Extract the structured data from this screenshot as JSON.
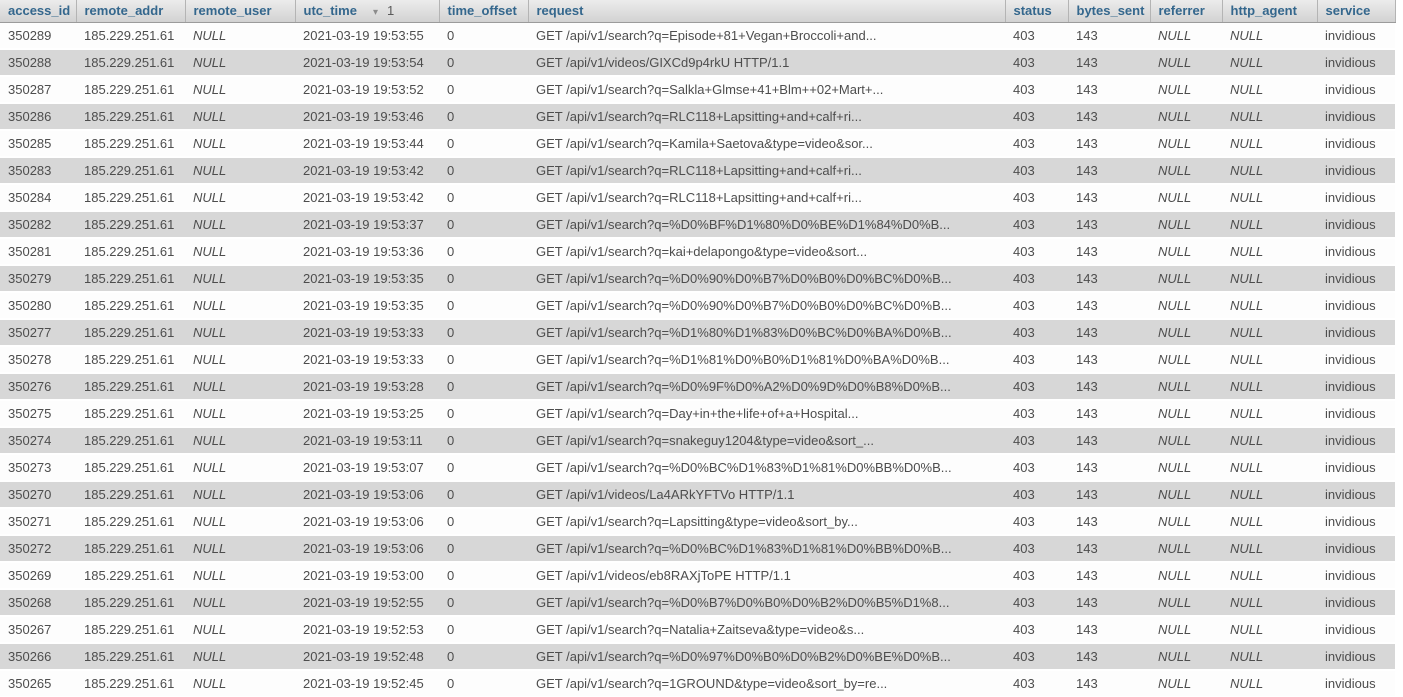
{
  "grid": {
    "columns": [
      {
        "label": "access_id"
      },
      {
        "label": "remote_addr"
      },
      {
        "label": "remote_user"
      },
      {
        "label": "utc_time",
        "sort_icon": "▾",
        "sort_priority": "1"
      },
      {
        "label": "time_offset"
      },
      {
        "label": "request"
      },
      {
        "label": "status"
      },
      {
        "label": "bytes_sent"
      },
      {
        "label": "referrer"
      },
      {
        "label": "http_agent"
      },
      {
        "label": "service"
      }
    ],
    "sort": {
      "column": "utc_time",
      "direction": "descending",
      "priority": "1"
    },
    "null_display": "NULL",
    "colors": {
      "header_text": "#34678d",
      "header_bg_top": "#ececec",
      "header_bg_bottom": "#d2d2d2",
      "header_border_bottom": "#9b9b9b",
      "row_even_bg": "#d7d7d7",
      "row_odd_bg": "#fdfdfd",
      "cell_text": "#4d4d4d"
    },
    "rows": [
      [
        "350289",
        "185.229.251.61",
        "NULL",
        "2021-03-19 19:53:55",
        "0",
        "GET /api/v1/search?q=Episode+81+Vegan+Broccoli+and...",
        "403",
        "143",
        "NULL",
        "NULL",
        "invidious"
      ],
      [
        "350288",
        "185.229.251.61",
        "NULL",
        "2021-03-19 19:53:54",
        "0",
        "GET /api/v1/videos/GIXCd9p4rkU HTTP/1.1",
        "403",
        "143",
        "NULL",
        "NULL",
        "invidious"
      ],
      [
        "350287",
        "185.229.251.61",
        "NULL",
        "2021-03-19 19:53:52",
        "0",
        "GET /api/v1/search?q=Salkla+Glmse+41+Blm++02+Mart+...",
        "403",
        "143",
        "NULL",
        "NULL",
        "invidious"
      ],
      [
        "350286",
        "185.229.251.61",
        "NULL",
        "2021-03-19 19:53:46",
        "0",
        "GET /api/v1/search?q=RLC118+Lapsitting+and+calf+ri...",
        "403",
        "143",
        "NULL",
        "NULL",
        "invidious"
      ],
      [
        "350285",
        "185.229.251.61",
        "NULL",
        "2021-03-19 19:53:44",
        "0",
        "GET /api/v1/search?q=Kamila+Saetova&type=video&sor...",
        "403",
        "143",
        "NULL",
        "NULL",
        "invidious"
      ],
      [
        "350283",
        "185.229.251.61",
        "NULL",
        "2021-03-19 19:53:42",
        "0",
        "GET /api/v1/search?q=RLC118+Lapsitting+and+calf+ri...",
        "403",
        "143",
        "NULL",
        "NULL",
        "invidious"
      ],
      [
        "350284",
        "185.229.251.61",
        "NULL",
        "2021-03-19 19:53:42",
        "0",
        "GET /api/v1/search?q=RLC118+Lapsitting+and+calf+ri...",
        "403",
        "143",
        "NULL",
        "NULL",
        "invidious"
      ],
      [
        "350282",
        "185.229.251.61",
        "NULL",
        "2021-03-19 19:53:37",
        "0",
        "GET /api/v1/search?q=%D0%BF%D1%80%D0%BE%D1%84%D0%B...",
        "403",
        "143",
        "NULL",
        "NULL",
        "invidious"
      ],
      [
        "350281",
        "185.229.251.61",
        "NULL",
        "2021-03-19 19:53:36",
        "0",
        "GET /api/v1/search?q=kai+delapongo&type=video&sort...",
        "403",
        "143",
        "NULL",
        "NULL",
        "invidious"
      ],
      [
        "350279",
        "185.229.251.61",
        "NULL",
        "2021-03-19 19:53:35",
        "0",
        "GET /api/v1/search?q=%D0%90%D0%B7%D0%B0%D0%BC%D0%B...",
        "403",
        "143",
        "NULL",
        "NULL",
        "invidious"
      ],
      [
        "350280",
        "185.229.251.61",
        "NULL",
        "2021-03-19 19:53:35",
        "0",
        "GET /api/v1/search?q=%D0%90%D0%B7%D0%B0%D0%BC%D0%B...",
        "403",
        "143",
        "NULL",
        "NULL",
        "invidious"
      ],
      [
        "350277",
        "185.229.251.61",
        "NULL",
        "2021-03-19 19:53:33",
        "0",
        "GET /api/v1/search?q=%D1%80%D1%83%D0%BC%D0%BA%D0%B...",
        "403",
        "143",
        "NULL",
        "NULL",
        "invidious"
      ],
      [
        "350278",
        "185.229.251.61",
        "NULL",
        "2021-03-19 19:53:33",
        "0",
        "GET /api/v1/search?q=%D1%81%D0%B0%D1%81%D0%BA%D0%B...",
        "403",
        "143",
        "NULL",
        "NULL",
        "invidious"
      ],
      [
        "350276",
        "185.229.251.61",
        "NULL",
        "2021-03-19 19:53:28",
        "0",
        "GET /api/v1/search?q=%D0%9F%D0%A2%D0%9D%D0%B8%D0%B...",
        "403",
        "143",
        "NULL",
        "NULL",
        "invidious"
      ],
      [
        "350275",
        "185.229.251.61",
        "NULL",
        "2021-03-19 19:53:25",
        "0",
        "GET /api/v1/search?q=Day+in+the+life+of+a+Hospital...",
        "403",
        "143",
        "NULL",
        "NULL",
        "invidious"
      ],
      [
        "350274",
        "185.229.251.61",
        "NULL",
        "2021-03-19 19:53:11",
        "0",
        "GET /api/v1/search?q=snakeguy1204&type=video&sort_...",
        "403",
        "143",
        "NULL",
        "NULL",
        "invidious"
      ],
      [
        "350273",
        "185.229.251.61",
        "NULL",
        "2021-03-19 19:53:07",
        "0",
        "GET /api/v1/search?q=%D0%BC%D1%83%D1%81%D0%BB%D0%B...",
        "403",
        "143",
        "NULL",
        "NULL",
        "invidious"
      ],
      [
        "350270",
        "185.229.251.61",
        "NULL",
        "2021-03-19 19:53:06",
        "0",
        "GET /api/v1/videos/La4ARkYFTVo HTTP/1.1",
        "403",
        "143",
        "NULL",
        "NULL",
        "invidious"
      ],
      [
        "350271",
        "185.229.251.61",
        "NULL",
        "2021-03-19 19:53:06",
        "0",
        "GET /api/v1/search?q=Lapsitting&type=video&sort_by...",
        "403",
        "143",
        "NULL",
        "NULL",
        "invidious"
      ],
      [
        "350272",
        "185.229.251.61",
        "NULL",
        "2021-03-19 19:53:06",
        "0",
        "GET /api/v1/search?q=%D0%BC%D1%83%D1%81%D0%BB%D0%B...",
        "403",
        "143",
        "NULL",
        "NULL",
        "invidious"
      ],
      [
        "350269",
        "185.229.251.61",
        "NULL",
        "2021-03-19 19:53:00",
        "0",
        "GET /api/v1/videos/eb8RAXjToPE HTTP/1.1",
        "403",
        "143",
        "NULL",
        "NULL",
        "invidious"
      ],
      [
        "350268",
        "185.229.251.61",
        "NULL",
        "2021-03-19 19:52:55",
        "0",
        "GET /api/v1/search?q=%D0%B7%D0%B0%D0%B2%D0%B5%D1%8...",
        "403",
        "143",
        "NULL",
        "NULL",
        "invidious"
      ],
      [
        "350267",
        "185.229.251.61",
        "NULL",
        "2021-03-19 19:52:53",
        "0",
        "GET /api/v1/search?q=Natalia+Zaitseva&type=video&s...",
        "403",
        "143",
        "NULL",
        "NULL",
        "invidious"
      ],
      [
        "350266",
        "185.229.251.61",
        "NULL",
        "2021-03-19 19:52:48",
        "0",
        "GET /api/v1/search?q=%D0%97%D0%B0%D0%B2%D0%BE%D0%B...",
        "403",
        "143",
        "NULL",
        "NULL",
        "invidious"
      ],
      [
        "350265",
        "185.229.251.61",
        "NULL",
        "2021-03-19 19:52:45",
        "0",
        "GET /api/v1/search?q=1GROUND&type=video&sort_by=re...",
        "403",
        "143",
        "NULL",
        "NULL",
        "invidious"
      ]
    ]
  }
}
